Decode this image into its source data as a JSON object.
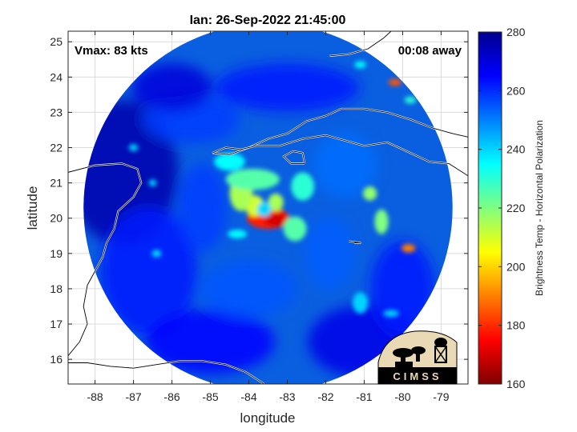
{
  "chart_data": {
    "type": "heatmap",
    "title": "Ian: 26-Sep-2022 21:45:00",
    "xlabel": "longitude",
    "ylabel": "latitude",
    "xlim": [
      -88.7,
      -78.3
    ],
    "ylim": [
      15.3,
      25.3
    ],
    "xticks": [
      -88,
      -87,
      -86,
      -85,
      -84,
      -83,
      -82,
      -81,
      -80,
      -79
    ],
    "yticks": [
      16,
      17,
      18,
      19,
      20,
      21,
      22,
      23,
      24,
      25
    ],
    "grid": true,
    "annotations": {
      "left": "Vmax: 83 kts",
      "right": "00:08 away"
    },
    "swath": {
      "center_lon": -83.5,
      "center_lat": 20.3,
      "radius_deg": 5.0
    },
    "storm": {
      "center_lon": -83.6,
      "center_lat": 20.25
    },
    "colorbar": {
      "label": "Brightness Temp - Horizontal Polarization",
      "ticks": [
        160,
        180,
        200,
        220,
        240,
        260,
        280
      ],
      "range": [
        160,
        280
      ],
      "colormap": [
        "#7f0000",
        "#ff0000",
        "#ff8000",
        "#ffff00",
        "#80ff80",
        "#00ffff",
        "#0080ff",
        "#0000ff",
        "#00008f"
      ]
    },
    "rain_features": [
      {
        "lon": -83.5,
        "lat": 20.0,
        "temp": 178,
        "rx": 0.55,
        "ry": 0.3
      },
      {
        "lon": -83.3,
        "lat": 19.95,
        "temp": 170,
        "rx": 0.3,
        "ry": 0.18
      },
      {
        "lon": -83.85,
        "lat": 20.35,
        "temp": 210,
        "rx": 0.25,
        "ry": 0.3
      },
      {
        "lon": -83.3,
        "lat": 20.45,
        "temp": 215,
        "rx": 0.2,
        "ry": 0.25
      },
      {
        "lon": -84.2,
        "lat": 20.7,
        "temp": 215,
        "rx": 0.3,
        "ry": 0.5
      },
      {
        "lon": -83.9,
        "lat": 21.1,
        "temp": 225,
        "rx": 0.7,
        "ry": 0.3
      },
      {
        "lon": -82.6,
        "lat": 20.9,
        "temp": 230,
        "rx": 0.3,
        "ry": 0.4
      },
      {
        "lon": -82.8,
        "lat": 19.7,
        "temp": 225,
        "rx": 0.3,
        "ry": 0.35
      },
      {
        "lon": -84.5,
        "lat": 21.6,
        "temp": 235,
        "rx": 0.4,
        "ry": 0.25
      },
      {
        "lon": -80.85,
        "lat": 20.7,
        "temp": 218,
        "rx": 0.18,
        "ry": 0.2
      },
      {
        "lon": -80.55,
        "lat": 19.9,
        "temp": 220,
        "rx": 0.18,
        "ry": 0.35
      },
      {
        "lon": -79.85,
        "lat": 19.15,
        "temp": 190,
        "rx": 0.18,
        "ry": 0.12
      },
      {
        "lon": -80.2,
        "lat": 23.85,
        "temp": 185,
        "rx": 0.17,
        "ry": 0.1
      },
      {
        "lon": -79.8,
        "lat": 23.35,
        "temp": 230,
        "rx": 0.15,
        "ry": 0.1
      },
      {
        "lon": -81.1,
        "lat": 24.35,
        "temp": 235,
        "rx": 0.15,
        "ry": 0.1
      },
      {
        "lon": -87.0,
        "lat": 22.0,
        "temp": 240,
        "rx": 0.12,
        "ry": 0.1
      },
      {
        "lon": -86.5,
        "lat": 21.0,
        "temp": 240,
        "rx": 0.1,
        "ry": 0.1
      },
      {
        "lon": -86.4,
        "lat": 19.0,
        "temp": 238,
        "rx": 0.12,
        "ry": 0.1
      },
      {
        "lon": -84.3,
        "lat": 19.55,
        "temp": 235,
        "rx": 0.25,
        "ry": 0.12
      },
      {
        "lon": -81.1,
        "lat": 17.6,
        "temp": 240,
        "rx": 0.2,
        "ry": 0.3
      },
      {
        "lon": -80.3,
        "lat": 17.3,
        "temp": 240,
        "rx": 0.2,
        "ry": 0.1
      }
    ],
    "coastlines": [
      [
        [
          -88.7,
          21.3
        ],
        [
          -88.0,
          21.5
        ],
        [
          -87.3,
          21.55
        ],
        [
          -86.9,
          21.4
        ],
        [
          -86.8,
          21.0
        ],
        [
          -87.0,
          20.6
        ],
        [
          -87.4,
          20.2
        ],
        [
          -87.5,
          19.7
        ],
        [
          -87.7,
          19.3
        ],
        [
          -87.8,
          18.9
        ],
        [
          -88.0,
          18.5
        ],
        [
          -88.2,
          18.1
        ],
        [
          -88.3,
          17.5
        ],
        [
          -88.2,
          17.0
        ],
        [
          -88.4,
          16.5
        ],
        [
          -88.7,
          16.1
        ]
      ],
      [
        [
          -88.7,
          15.9
        ],
        [
          -88.2,
          15.9
        ],
        [
          -87.6,
          15.8
        ],
        [
          -87.0,
          15.75
        ],
        [
          -86.4,
          15.85
        ],
        [
          -85.8,
          15.95
        ],
        [
          -85.2,
          15.95
        ],
        [
          -84.6,
          15.85
        ],
        [
          -84.1,
          15.65
        ],
        [
          -83.6,
          15.3
        ]
      ],
      [
        [
          -84.95,
          21.85
        ],
        [
          -84.5,
          21.8
        ],
        [
          -84.0,
          22.0
        ],
        [
          -83.5,
          22.25
        ],
        [
          -83.0,
          22.4
        ],
        [
          -82.5,
          22.75
        ],
        [
          -82.0,
          22.9
        ],
        [
          -81.6,
          23.1
        ],
        [
          -81.0,
          23.1
        ],
        [
          -80.4,
          23.0
        ],
        [
          -79.8,
          22.8
        ],
        [
          -79.2,
          22.55
        ],
        [
          -78.7,
          22.4
        ],
        [
          -78.3,
          22.3
        ]
      ],
      [
        [
          -84.95,
          21.85
        ],
        [
          -84.6,
          22.0
        ],
        [
          -84.2,
          21.95
        ],
        [
          -83.8,
          22.05
        ],
        [
          -83.2,
          22.05
        ],
        [
          -82.6,
          22.25
        ],
        [
          -82.0,
          22.35
        ],
        [
          -81.5,
          22.2
        ],
        [
          -81.0,
          22.05
        ],
        [
          -80.4,
          22.15
        ],
        [
          -79.9,
          21.9
        ],
        [
          -79.3,
          21.6
        ],
        [
          -78.8,
          21.55
        ],
        [
          -78.3,
          21.2
        ]
      ],
      [
        [
          -82.55,
          21.55
        ],
        [
          -82.9,
          21.55
        ],
        [
          -83.1,
          21.75
        ],
        [
          -82.85,
          21.9
        ],
        [
          -82.6,
          21.85
        ],
        [
          -82.55,
          21.55
        ]
      ],
      [
        [
          -81.4,
          19.35
        ],
        [
          -81.1,
          19.3
        ],
        [
          -81.25,
          19.3
        ]
      ],
      [
        [
          -81.9,
          24.6
        ],
        [
          -81.4,
          24.65
        ],
        [
          -80.9,
          24.8
        ],
        [
          -80.5,
          25.1
        ],
        [
          -80.3,
          25.3
        ]
      ]
    ]
  },
  "logo": {
    "text": "CIMSS"
  }
}
